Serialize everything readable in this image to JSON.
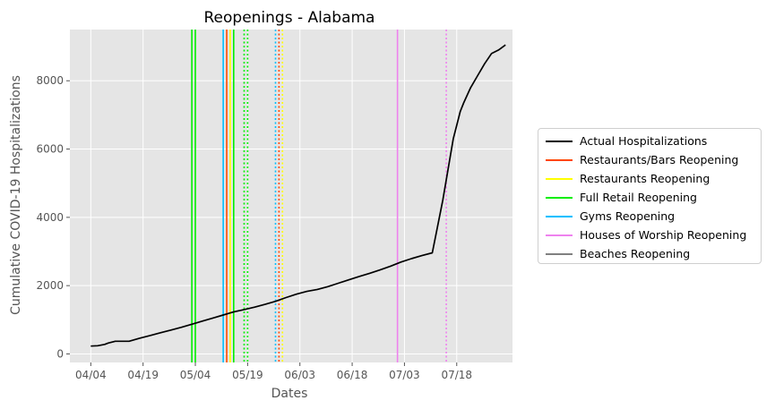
{
  "chart_data": {
    "type": "line",
    "title": "Reopenings - Alabama",
    "xlabel": "Dates",
    "ylabel": "Cumulative COVID-19 Hospitalizations",
    "x_ticks": [
      "04/04",
      "04/19",
      "05/04",
      "05/19",
      "06/03",
      "06/18",
      "07/03",
      "07/18"
    ],
    "y_ticks": [
      0,
      2000,
      4000,
      6000,
      8000
    ],
    "xlim": [
      -6,
      121
    ],
    "ylim": [
      -250,
      9500
    ],
    "grid": true,
    "legend_position": "right",
    "series": [
      {
        "name": "Actual Hospitalizations",
        "color": "#000000",
        "x": [
          0,
          2,
          4,
          5,
          7,
          8,
          11,
          14,
          17,
          20,
          23,
          26,
          29,
          32,
          35,
          38,
          41,
          44,
          47,
          50,
          53,
          56,
          59,
          62,
          65,
          68,
          71,
          74,
          77,
          80,
          83,
          86,
          89,
          92,
          95,
          98,
          101,
          104,
          106,
          107,
          109,
          111,
          113,
          115,
          117,
          119
        ],
        "values": [
          230,
          240,
          280,
          320,
          370,
          370,
          370,
          460,
          540,
          620,
          700,
          780,
          870,
          960,
          1050,
          1140,
          1230,
          1300,
          1370,
          1450,
          1540,
          1650,
          1750,
          1830,
          1890,
          1970,
          2070,
          2170,
          2270,
          2360,
          2460,
          2570,
          2690,
          2790,
          2880,
          2960,
          4500,
          6300,
          7100,
          7350,
          7800,
          8150,
          8500,
          8800,
          8900,
          9050
        ]
      }
    ],
    "reopening_lines": [
      {
        "day": 29,
        "color": "#00ee00",
        "style": "solid"
      },
      {
        "day": 30,
        "color": "#00ee00",
        "style": "solid"
      },
      {
        "day": 38,
        "color": "#00bfff",
        "style": "solid"
      },
      {
        "day": 39,
        "color": "#ff4500",
        "style": "solid"
      },
      {
        "day": 40,
        "color": "#ffff00",
        "style": "solid"
      },
      {
        "day": 41,
        "color": "#00ee00",
        "style": "solid"
      },
      {
        "day": 44,
        "color": "#00ee00",
        "style": "dotted"
      },
      {
        "day": 45,
        "color": "#00ee00",
        "style": "dotted"
      },
      {
        "day": 53,
        "color": "#00bfff",
        "style": "dotted"
      },
      {
        "day": 54,
        "color": "#ff4500",
        "style": "dotted"
      },
      {
        "day": 55,
        "color": "#ffff00",
        "style": "dotted"
      },
      {
        "day": 88,
        "color": "#ee82ee",
        "style": "solid"
      },
      {
        "day": 102,
        "color": "#ee82ee",
        "style": "dotted"
      }
    ],
    "legend": [
      {
        "label": "Actual Hospitalizations",
        "color": "#000000"
      },
      {
        "label": "Restaurants/Bars Reopening",
        "color": "#ff4500"
      },
      {
        "label": "Restaurants Reopening",
        "color": "#ffff00"
      },
      {
        "label": "Full Retail Reopening",
        "color": "#00ee00"
      },
      {
        "label": "Gyms Reopening",
        "color": "#00bfff"
      },
      {
        "label": "Houses of Worship Reopening",
        "color": "#ee82ee"
      },
      {
        "label": "Beaches Reopening",
        "color": "#808080"
      }
    ]
  }
}
